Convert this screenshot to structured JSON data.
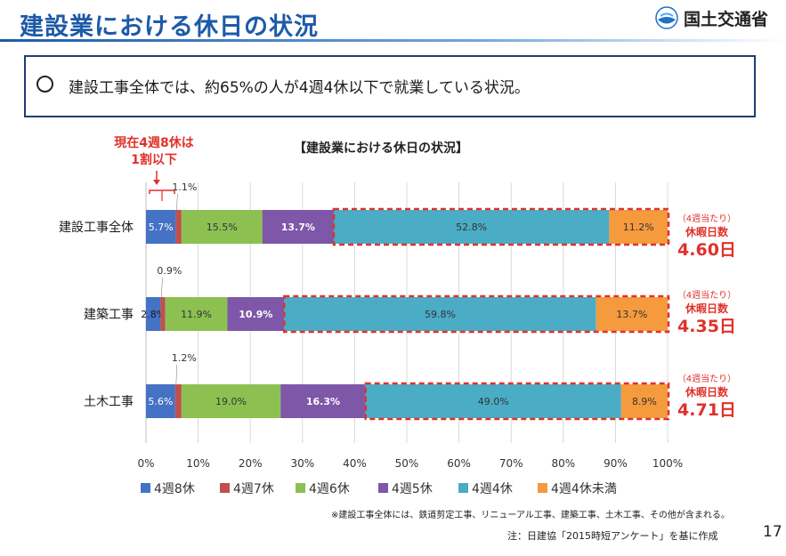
{
  "header": {
    "title": "建設業における休日の状況",
    "logo_text": "国土交通省",
    "logo_icon": "mlit-logo-icon"
  },
  "summary": {
    "bullet": "circle-bullet",
    "text": "建設工事全体では、約65%の人が4週4休以下で就業している状況。"
  },
  "callout": {
    "line1": "現在4週8休は",
    "line2": "1割以下"
  },
  "chart_data": {
    "type": "bar",
    "orientation": "horizontal",
    "stacked": true,
    "title": "【建設業における休日の状況】",
    "categories": [
      "建設工事全体",
      "建築工事",
      "土木工事"
    ],
    "series": [
      {
        "name": "4週8休",
        "color": "#4472c4",
        "values": [
          5.7,
          2.8,
          5.6
        ]
      },
      {
        "name": "4週7休",
        "color": "#c0504d",
        "values": [
          1.1,
          0.9,
          1.2
        ]
      },
      {
        "name": "4週6休",
        "color": "#8cc152",
        "values": [
          15.5,
          11.9,
          19.0
        ]
      },
      {
        "name": "4週5休",
        "color": "#7e57a8",
        "values": [
          13.7,
          10.9,
          16.3
        ]
      },
      {
        "name": "4週4休",
        "color": "#4bacc6",
        "values": [
          52.8,
          59.8,
          49.0
        ]
      },
      {
        "name": "4週4休未満",
        "color": "#f59b3d",
        "values": [
          11.2,
          13.7,
          8.9
        ]
      }
    ],
    "data_labels": [
      [
        "5.7%",
        "1.1%",
        "15.5%",
        "13.7%",
        "52.8%",
        "11.2%"
      ],
      [
        "2.8%",
        "0.9%",
        "11.9%",
        "10.9%",
        "59.8%",
        "13.7%"
      ],
      [
        "5.6%",
        "1.2%",
        "19.0%",
        "16.3%",
        "49.0%",
        "8.9%"
      ]
    ],
    "x_ticks": [
      "0%",
      "10%",
      "20%",
      "30%",
      "40%",
      "50%",
      "60%",
      "70%",
      "80%",
      "90%",
      "100%"
    ],
    "xlim": [
      0,
      100
    ],
    "grid": true,
    "legend_position": "bottom",
    "highlight": "4週4休以下 (dashed red outline)",
    "highlight_color": "#e0312b"
  },
  "side_stats": [
    {
      "label1": "（4週当たり）",
      "label2": "休暇日数",
      "value": "4.60日"
    },
    {
      "label1": "（4週当たり）",
      "label2": "休暇日数",
      "value": "4.35日"
    },
    {
      "label1": "（4週当たり）",
      "label2": "休暇日数",
      "value": "4.71日"
    }
  ],
  "footnote": "※建設工事全体には、鉄道剪定工事、リニューアル工事、建築工事、土木工事、その他が含まれる。",
  "source": "注：日建協「2015時短アンケート」を基に作成",
  "page_number": "17"
}
